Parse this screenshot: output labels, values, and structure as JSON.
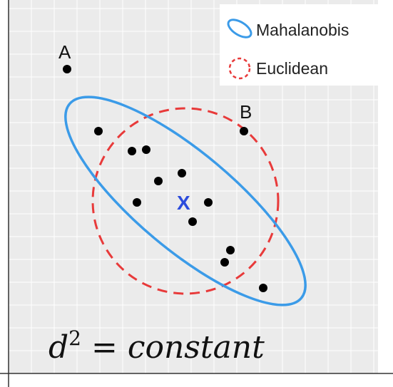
{
  "legend": {
    "mahalanobis_label": "Mahalanobis",
    "euclidean_label": "Euclidean"
  },
  "colors": {
    "mahalanobis": "#3b9be8",
    "euclidean": "#e83a3a",
    "center": "#2b4bdc",
    "points": "#000000",
    "panel": "#ebebeb",
    "grid": "#ffffff"
  },
  "labels": {
    "point_a": "A",
    "point_b": "B",
    "center_marker": "X"
  },
  "formula": {
    "base": "d",
    "exponent": "2",
    "rest": " = constant"
  }
}
